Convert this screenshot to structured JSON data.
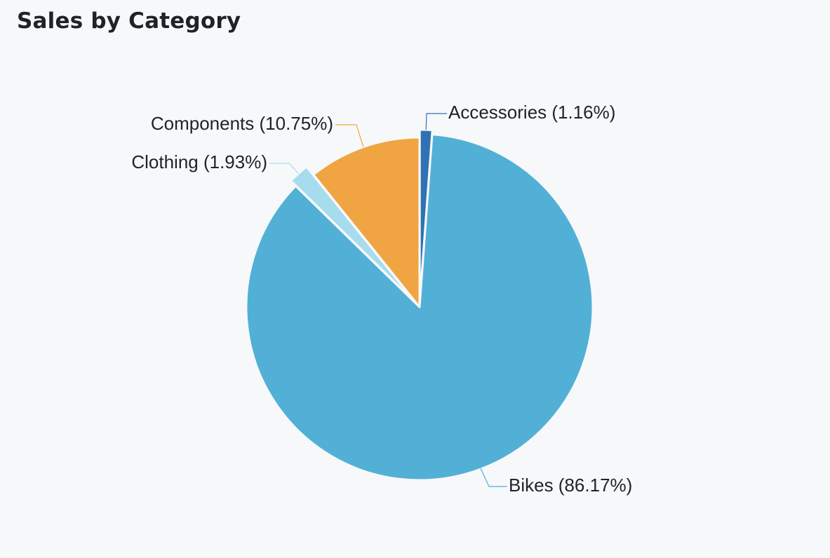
{
  "chart_data": {
    "type": "pie",
    "title": "Sales by Category",
    "slices": [
      {
        "name": "Accessories",
        "value": 1.16,
        "label": "Accessories (1.16%)",
        "color": "#2f72b3"
      },
      {
        "name": "Bikes",
        "value": 86.17,
        "label": "Bikes (86.17%)",
        "color": "#52b0d6"
      },
      {
        "name": "Clothing",
        "value": 1.93,
        "label": "Clothing (1.93%)",
        "color": "#a6dcee"
      },
      {
        "name": "Components",
        "value": 10.75,
        "label": "Components (10.75%)",
        "color": "#f0a442"
      }
    ],
    "start_angle": "top",
    "direction": "clockwise",
    "legend": "none"
  },
  "colors": {
    "background": "#f7f8fa",
    "title": "#1f2329",
    "label_text": "#202428"
  }
}
